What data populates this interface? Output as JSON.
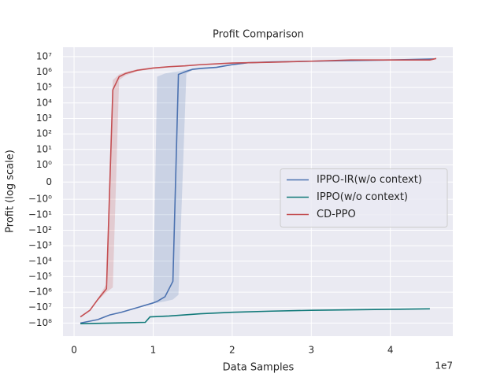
{
  "chart_data": {
    "type": "line",
    "title": "Profit Comparison",
    "x_label": "Data Samples",
    "y_label": "Profit (log scale)",
    "x_offset_label": "1e7",
    "yscale": "symlog",
    "linthresh": 1,
    "grid": true,
    "legend": "center right",
    "xlim": [
      -1400000,
      47900000
    ],
    "xticks": [
      0,
      {
        "value": 10000000,
        "label": "1"
      },
      {
        "value": 20000000,
        "label": "2"
      },
      {
        "value": 30000000,
        "label": "3"
      },
      {
        "value": 40000000,
        "label": "4"
      }
    ],
    "ylim": [
      -700000000,
      40000000
    ],
    "yticks": [
      {
        "value": 10000000,
        "label": "10⁷"
      },
      {
        "value": 1000000,
        "label": "10⁶"
      },
      {
        "value": 100000,
        "label": "10⁵"
      },
      {
        "value": 10000,
        "label": "10⁴"
      },
      {
        "value": 1000,
        "label": "10³"
      },
      {
        "value": 100,
        "label": "10²"
      },
      {
        "value": 10,
        "label": "10¹"
      },
      {
        "value": 1,
        "label": "10⁰"
      },
      0,
      {
        "value": -1,
        "label": "−10⁰"
      },
      {
        "value": -10,
        "label": "−10¹"
      },
      {
        "value": -100,
        "label": "−10²"
      },
      {
        "value": -1000,
        "label": "−10³"
      },
      {
        "value": -10000,
        "label": "−10⁴"
      },
      {
        "value": -100000,
        "label": "−10⁵"
      },
      {
        "value": -1000000,
        "label": "−10⁶"
      },
      {
        "value": -10000000,
        "label": "−10⁷"
      },
      {
        "value": -100000000,
        "label": "−10⁸"
      }
    ],
    "series": [
      {
        "name": "IPPO-IR(w/o context)",
        "color": "#4c72b0",
        "x": [
          800000,
          3000000,
          4500000,
          6000000,
          8000000,
          10000000,
          10500000,
          11500000,
          12500000,
          13200000,
          14200000,
          15000000,
          16000000,
          18000000,
          20000000,
          22000000,
          25000000,
          30000000,
          35000000,
          40000000,
          45500000
        ],
        "values": [
          -100000000,
          -60000000,
          -30000000,
          -20000000,
          -10000000,
          -5000000,
          -4000000,
          -2000000,
          -200000,
          700000,
          1100000,
          1500000,
          1700000,
          2000000,
          3000000,
          4000000,
          4500000,
          5000000,
          5500000,
          6000000,
          7000000
        ],
        "lower": [
          -100000000,
          -60000000,
          -30000000,
          -20000000,
          -10000000,
          -5000000,
          -5000000,
          -4000000,
          -3000000,
          -1500000,
          800000,
          1300000,
          1500000,
          1800000,
          2700000,
          3700000,
          4200000,
          4700000,
          5200000,
          5700000,
          6500000
        ],
        "upper": [
          -100000000,
          -60000000,
          -30000000,
          -20000000,
          -10000000,
          -5000000,
          500000,
          800000,
          1000000,
          1100000,
          1400000,
          1700000,
          1900000,
          2200000,
          3300000,
          4300000,
          4800000,
          5300000,
          5800000,
          6300000,
          7500000
        ]
      },
      {
        "name": "IPPO(w/o context)",
        "color": "#127a7a",
        "x": [
          800000,
          9000000,
          9600000,
          12000000,
          16000000,
          20000000,
          25000000,
          30000000,
          35000000,
          40000000,
          45000000
        ],
        "values": [
          -110000000,
          -90000000,
          -40000000,
          -35000000,
          -25000000,
          -20000000,
          -17000000,
          -15000000,
          -14000000,
          -13000000,
          -12000000
        ]
      },
      {
        "name": "CD-PPO",
        "color": "#c44e52",
        "x": [
          800000,
          2000000,
          3000000,
          4100000,
          4900000,
          5700000,
          6500000,
          8000000,
          10000000,
          12000000,
          14000000,
          16000000,
          20000000,
          25000000,
          30000000,
          35000000,
          40000000,
          45000000,
          45800000
        ],
        "values": [
          -40000000,
          -15000000,
          -3000000,
          -600000,
          70000,
          500000,
          800000,
          1300000,
          1800000,
          2200000,
          2500000,
          3000000,
          3800000,
          4300000,
          5000000,
          6000000,
          6000000,
          6000000,
          7500000
        ],
        "lower": [
          -40000000,
          -15000000,
          -3500000,
          -1000000,
          -500000,
          300000,
          600000,
          1100000,
          1600000,
          2000000,
          2300000,
          2800000,
          3600000,
          4100000,
          4800000,
          5700000,
          5800000,
          5800000,
          7200000
        ],
        "upper": [
          -40000000,
          -15000000,
          -2500000,
          -300000,
          300000,
          700000,
          1000000,
          1500000,
          2000000,
          2400000,
          2700000,
          3200000,
          4000000,
          4500000,
          5200000,
          6300000,
          6300000,
          6300000,
          7800000
        ]
      }
    ]
  }
}
